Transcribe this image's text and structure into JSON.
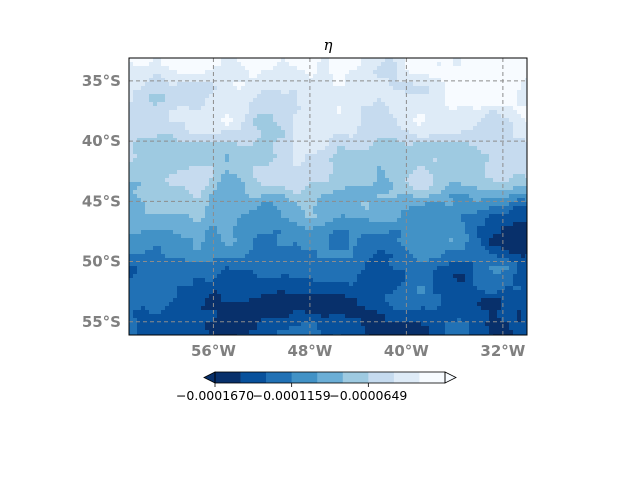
{
  "chart_data": {
    "type": "heatmap",
    "title": "η",
    "x_tick_labels": [
      "56°W",
      "48°W",
      "40°W",
      "32°W"
    ],
    "x_tick_values": [
      -56,
      -48,
      -40,
      -32
    ],
    "y_tick_labels": [
      "35°S",
      "40°S",
      "45°S",
      "50°S",
      "55°S"
    ],
    "y_tick_values": [
      -35,
      -40,
      -45,
      -50,
      -55
    ],
    "xlim": [
      -63,
      -30
    ],
    "ylim": [
      -56.1,
      -33.1
    ],
    "grid": true,
    "colormap": "Blues_r",
    "colorbar": {
      "orientation": "horizontal",
      "location": "bottom",
      "extend": "both",
      "n_levels": 9,
      "colors": [
        "#08306b",
        "#08519c",
        "#2171b5",
        "#4292c6",
        "#6baed6",
        "#9ecae1",
        "#c6dbef",
        "#deebf7",
        "#f7fbff"
      ],
      "tick_labels": [
        "−0.0001670",
        "−0.0001159",
        "−0.0000649"
      ],
      "tick_level_index": [
        0,
        3,
        6
      ]
    },
    "field_level_profile_by_latitude": [
      {
        "lat": -33.1,
        "level": 7.4
      },
      {
        "lat": -36.0,
        "level": 6.8
      },
      {
        "lat": -39.0,
        "level": 6.2
      },
      {
        "lat": -42.0,
        "level": 5.6
      },
      {
        "lat": -44.0,
        "level": 4.6
      },
      {
        "lat": -46.0,
        "level": 3.4
      },
      {
        "lat": -48.0,
        "level": 2.8
      },
      {
        "lat": -50.0,
        "level": 2.3
      },
      {
        "lat": -52.0,
        "level": 1.6
      },
      {
        "lat": -54.0,
        "level": 0.9
      },
      {
        "lat": -56.1,
        "level": 1.2
      }
    ],
    "east_edge_extremes": [
      {
        "lat": -34.5,
        "level": 8.6
      },
      {
        "lat": -47.0,
        "level": 0.6
      }
    ]
  }
}
